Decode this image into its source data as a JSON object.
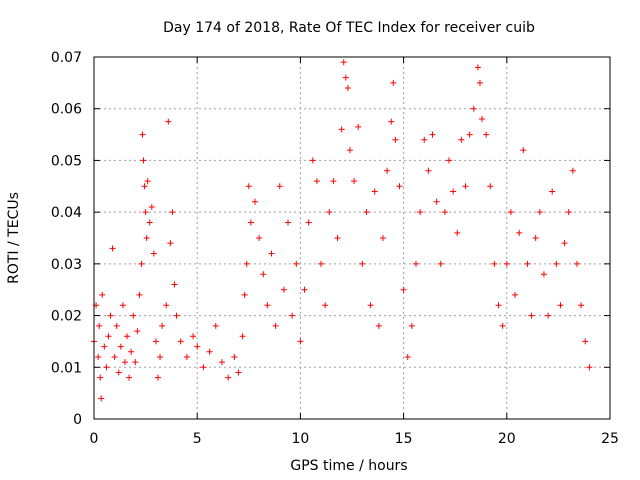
{
  "chart_data": {
    "type": "scatter",
    "title": "Day 174 of 2018, Rate Of TEC Index for receiver cuib",
    "xlabel": "GPS time / hours",
    "ylabel": "ROTI / TECUs",
    "xlim": [
      0,
      25
    ],
    "ylim": [
      0,
      0.07
    ],
    "xticks": [
      0,
      5,
      10,
      15,
      20,
      25
    ],
    "xtick_labels": [
      "0",
      "5",
      "10",
      "15",
      "20",
      "25"
    ],
    "yticks": [
      0,
      0.01,
      0.02,
      0.03,
      0.04,
      0.05,
      0.06,
      0.07
    ],
    "ytick_labels": [
      "0",
      "0.01",
      "0.02",
      "0.03",
      "0.04",
      "0.05",
      "0.06",
      "0.07"
    ],
    "grid": true,
    "marker": "+",
    "color": "#ff0000",
    "series": [
      {
        "name": "ROTI",
        "points": [
          [
            0.0,
            0.015
          ],
          [
            0.1,
            0.022
          ],
          [
            0.2,
            0.012
          ],
          [
            0.25,
            0.018
          ],
          [
            0.3,
            0.008
          ],
          [
            0.35,
            0.004
          ],
          [
            0.4,
            0.024
          ],
          [
            0.5,
            0.014
          ],
          [
            0.6,
            0.01
          ],
          [
            0.7,
            0.016
          ],
          [
            0.8,
            0.02
          ],
          [
            0.9,
            0.033
          ],
          [
            1.0,
            0.012
          ],
          [
            1.1,
            0.018
          ],
          [
            1.2,
            0.009
          ],
          [
            1.3,
            0.014
          ],
          [
            1.4,
            0.022
          ],
          [
            1.5,
            0.011
          ],
          [
            1.6,
            0.016
          ],
          [
            1.7,
            0.008
          ],
          [
            1.8,
            0.013
          ],
          [
            1.9,
            0.02
          ],
          [
            2.0,
            0.011
          ],
          [
            2.1,
            0.017
          ],
          [
            2.2,
            0.024
          ],
          [
            2.3,
            0.03
          ],
          [
            2.35,
            0.055
          ],
          [
            2.4,
            0.05
          ],
          [
            2.45,
            0.045
          ],
          [
            2.5,
            0.04
          ],
          [
            2.55,
            0.035
          ],
          [
            2.6,
            0.046
          ],
          [
            2.7,
            0.038
          ],
          [
            2.8,
            0.041
          ],
          [
            2.9,
            0.032
          ],
          [
            3.0,
            0.015
          ],
          [
            3.1,
            0.008
          ],
          [
            3.2,
            0.012
          ],
          [
            3.3,
            0.018
          ],
          [
            3.5,
            0.022
          ],
          [
            3.6,
            0.0575
          ],
          [
            3.7,
            0.034
          ],
          [
            3.8,
            0.04
          ],
          [
            3.9,
            0.026
          ],
          [
            4.0,
            0.02
          ],
          [
            4.2,
            0.015
          ],
          [
            4.5,
            0.012
          ],
          [
            4.8,
            0.016
          ],
          [
            5.0,
            0.014
          ],
          [
            5.3,
            0.01
          ],
          [
            5.6,
            0.013
          ],
          [
            5.9,
            0.018
          ],
          [
            6.2,
            0.011
          ],
          [
            6.5,
            0.008
          ],
          [
            6.8,
            0.012
          ],
          [
            7.0,
            0.009
          ],
          [
            7.2,
            0.016
          ],
          [
            7.3,
            0.024
          ],
          [
            7.4,
            0.03
          ],
          [
            7.5,
            0.045
          ],
          [
            7.6,
            0.038
          ],
          [
            7.8,
            0.042
          ],
          [
            8.0,
            0.035
          ],
          [
            8.2,
            0.028
          ],
          [
            8.4,
            0.022
          ],
          [
            8.6,
            0.032
          ],
          [
            8.8,
            0.018
          ],
          [
            9.0,
            0.045
          ],
          [
            9.2,
            0.025
          ],
          [
            9.4,
            0.038
          ],
          [
            9.6,
            0.02
          ],
          [
            9.8,
            0.03
          ],
          [
            10.0,
            0.015
          ],
          [
            10.2,
            0.025
          ],
          [
            10.4,
            0.038
          ],
          [
            10.6,
            0.05
          ],
          [
            10.8,
            0.046
          ],
          [
            11.0,
            0.03
          ],
          [
            11.2,
            0.022
          ],
          [
            11.4,
            0.04
          ],
          [
            11.6,
            0.046
          ],
          [
            11.8,
            0.035
          ],
          [
            12.0,
            0.056
          ],
          [
            12.1,
            0.069
          ],
          [
            12.2,
            0.066
          ],
          [
            12.3,
            0.064
          ],
          [
            12.4,
            0.052
          ],
          [
            12.6,
            0.046
          ],
          [
            12.8,
            0.0565
          ],
          [
            13.0,
            0.03
          ],
          [
            13.2,
            0.04
          ],
          [
            13.4,
            0.022
          ],
          [
            13.6,
            0.044
          ],
          [
            13.8,
            0.018
          ],
          [
            14.0,
            0.035
          ],
          [
            14.2,
            0.048
          ],
          [
            14.4,
            0.0575
          ],
          [
            14.5,
            0.065
          ],
          [
            14.6,
            0.054
          ],
          [
            14.8,
            0.045
          ],
          [
            15.0,
            0.025
          ],
          [
            15.2,
            0.012
          ],
          [
            15.4,
            0.018
          ],
          [
            15.6,
            0.03
          ],
          [
            15.8,
            0.04
          ],
          [
            16.0,
            0.054
          ],
          [
            16.2,
            0.048
          ],
          [
            16.4,
            0.055
          ],
          [
            16.6,
            0.042
          ],
          [
            16.8,
            0.03
          ],
          [
            17.0,
            0.04
          ],
          [
            17.2,
            0.05
          ],
          [
            17.4,
            0.044
          ],
          [
            17.6,
            0.036
          ],
          [
            17.8,
            0.054
          ],
          [
            18.0,
            0.045
          ],
          [
            18.2,
            0.055
          ],
          [
            18.4,
            0.06
          ],
          [
            18.6,
            0.068
          ],
          [
            18.7,
            0.065
          ],
          [
            18.8,
            0.058
          ],
          [
            19.0,
            0.055
          ],
          [
            19.2,
            0.045
          ],
          [
            19.4,
            0.03
          ],
          [
            19.6,
            0.022
          ],
          [
            19.8,
            0.018
          ],
          [
            20.0,
            0.03
          ],
          [
            20.2,
            0.04
          ],
          [
            20.4,
            0.024
          ],
          [
            20.6,
            0.036
          ],
          [
            20.8,
            0.052
          ],
          [
            21.0,
            0.03
          ],
          [
            21.2,
            0.02
          ],
          [
            21.4,
            0.035
          ],
          [
            21.6,
            0.04
          ],
          [
            21.8,
            0.028
          ],
          [
            22.0,
            0.02
          ],
          [
            22.2,
            0.044
          ],
          [
            22.4,
            0.03
          ],
          [
            22.6,
            0.022
          ],
          [
            22.8,
            0.034
          ],
          [
            23.0,
            0.04
          ],
          [
            23.2,
            0.048
          ],
          [
            23.4,
            0.03
          ],
          [
            23.6,
            0.022
          ],
          [
            23.8,
            0.015
          ],
          [
            24.0,
            0.01
          ]
        ]
      }
    ]
  }
}
